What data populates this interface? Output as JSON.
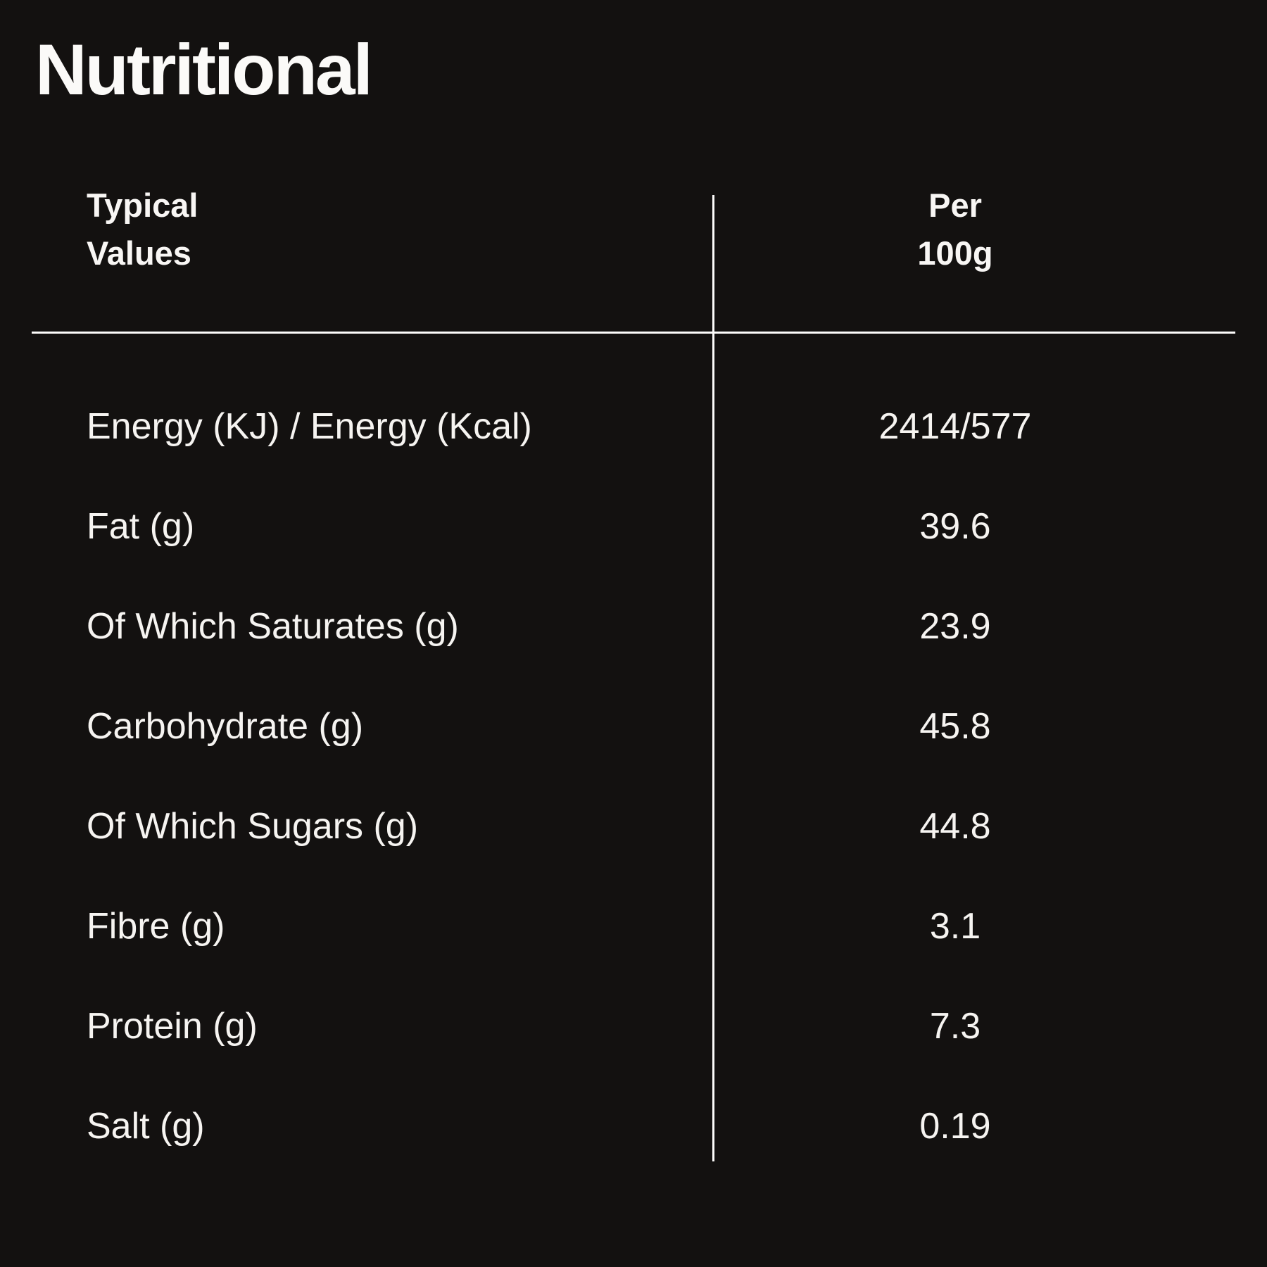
{
  "title": "Nutritional",
  "table": {
    "header": {
      "col_label": "Typical\nValues",
      "col_value": "Per\n100g"
    },
    "rows": [
      {
        "label": "Energy (KJ) / Energy (Kcal)",
        "value": "2414/577"
      },
      {
        "label": "Fat (g)",
        "value": "39.6"
      },
      {
        "label": "Of Which Saturates (g)",
        "value": "23.9"
      },
      {
        "label": "Carbohydrate (g)",
        "value": "45.8"
      },
      {
        "label": "Of Which Sugars (g)",
        "value": "44.8"
      },
      {
        "label": "Fibre (g)",
        "value": "3.1"
      },
      {
        "label": "Protein (g)",
        "value": "7.3"
      },
      {
        "label": "Salt (g)",
        "value": "0.19"
      }
    ]
  },
  "colors": {
    "background": "#131110",
    "text": "#f8f6f4",
    "rule": "#fdfcfb"
  }
}
